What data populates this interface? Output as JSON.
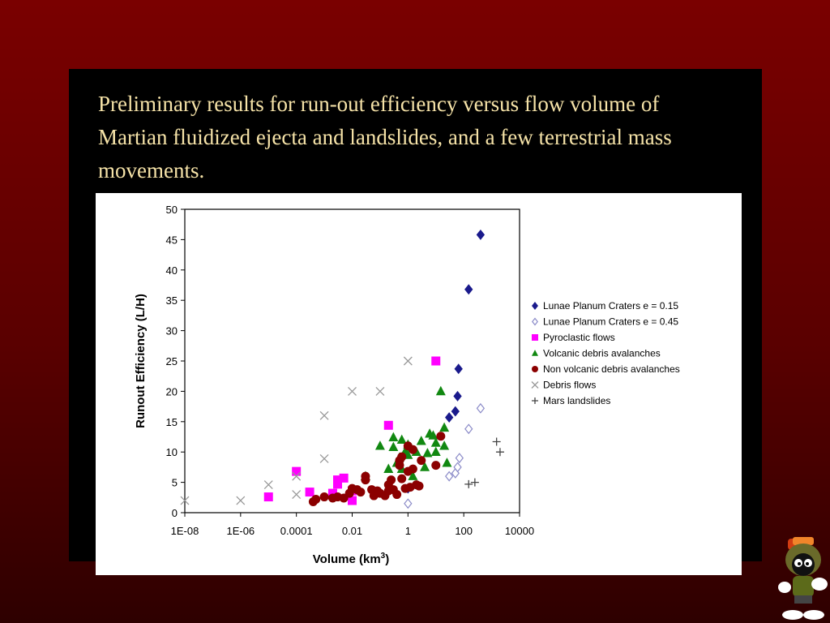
{
  "slide": {
    "title": "Preliminary results for run-out efficiency versus flow volume of Martian fluidized ejecta and landslides, and a few terrestrial mass movements."
  },
  "colors": {
    "background_top": "#7a0000",
    "background_bottom": "#2e0000",
    "panel": "#000000",
    "title_text": "#f6e3a8"
  },
  "mascot": {
    "icon": "marvin-martian-icon"
  },
  "chart_data": {
    "type": "scatter",
    "xlabel": "Volume (km",
    "xlabel_sup": "3",
    "xlabel_close": ")",
    "ylabel": "Runout Efficiency (L/H)",
    "xscale": "log",
    "xlim": [
      1e-08,
      10000
    ],
    "ylim": [
      0,
      50
    ],
    "xticks": [
      {
        "value": 1e-08,
        "label": "1E-08"
      },
      {
        "value": 1e-06,
        "label": "1E-06"
      },
      {
        "value": 0.0001,
        "label": "0.0001"
      },
      {
        "value": 0.01,
        "label": "0.01"
      },
      {
        "value": 1,
        "label": "1"
      },
      {
        "value": 100,
        "label": "100"
      },
      {
        "value": 10000,
        "label": "10000"
      }
    ],
    "yticks": [
      0,
      5,
      10,
      15,
      20,
      25,
      30,
      35,
      40,
      45,
      50
    ],
    "grid": false,
    "legend_position": "right",
    "series": [
      {
        "name": "Lunae Planum Craters e = 0.15",
        "marker": "diamond-filled",
        "color": "#1a1a8c",
        "points": [
          [
            1,
            4
          ],
          [
            30,
            15.7
          ],
          [
            50,
            16.7
          ],
          [
            60,
            19.2
          ],
          [
            65,
            23.7
          ],
          [
            150,
            36.8
          ],
          [
            400,
            45.8
          ]
        ]
      },
      {
        "name": "Lunae Planum Craters e = 0.45",
        "marker": "diamond-open",
        "color": "#8b8bc8",
        "points": [
          [
            1,
            1.5
          ],
          [
            30,
            6
          ],
          [
            50,
            6.5
          ],
          [
            60,
            7.5
          ],
          [
            70,
            9
          ],
          [
            150,
            13.8
          ],
          [
            400,
            17.2
          ]
        ]
      },
      {
        "name": "Pyroclastic flows",
        "marker": "square",
        "color": "#ff00ff",
        "points": [
          [
            1e-05,
            2.6
          ],
          [
            0.0001,
            6.8
          ],
          [
            0.0003,
            3.4
          ],
          [
            0.002,
            3.2
          ],
          [
            0.003,
            4.7
          ],
          [
            0.003,
            5.4
          ],
          [
            0.005,
            5.7
          ],
          [
            0.01,
            3.6
          ],
          [
            0.01,
            2
          ],
          [
            0.2,
            14.4
          ],
          [
            10,
            25
          ]
        ]
      },
      {
        "name": "Volcanic debris avalanches",
        "marker": "triangle",
        "color": "#118811",
        "points": [
          [
            0.03,
            6
          ],
          [
            0.1,
            11
          ],
          [
            0.2,
            7.2
          ],
          [
            0.3,
            12.4
          ],
          [
            0.3,
            10.8
          ],
          [
            0.4,
            8.2
          ],
          [
            0.5,
            9.1
          ],
          [
            0.6,
            7.2
          ],
          [
            0.6,
            12
          ],
          [
            0.8,
            10.1
          ],
          [
            1,
            9.5
          ],
          [
            1,
            11.2
          ],
          [
            1.5,
            6
          ],
          [
            2,
            10
          ],
          [
            3,
            11.8
          ],
          [
            4,
            7.5
          ],
          [
            5,
            9.8
          ],
          [
            6,
            13
          ],
          [
            8,
            12.7
          ],
          [
            10,
            10
          ],
          [
            10,
            11.5
          ],
          [
            15,
            20
          ],
          [
            20,
            11
          ],
          [
            20,
            14
          ],
          [
            25,
            8.2
          ]
        ]
      },
      {
        "name": "Non volcanic debris avalanches",
        "marker": "circle",
        "color": "#8b0000",
        "points": [
          [
            0.0004,
            1.8
          ],
          [
            0.0005,
            2.2
          ],
          [
            0.001,
            2.6
          ],
          [
            0.002,
            2.4
          ],
          [
            0.003,
            2.6
          ],
          [
            0.005,
            2.4
          ],
          [
            0.008,
            3.2
          ],
          [
            0.01,
            4
          ],
          [
            0.015,
            3.8
          ],
          [
            0.02,
            3.4
          ],
          [
            0.03,
            5.4
          ],
          [
            0.03,
            6
          ],
          [
            0.05,
            3.8
          ],
          [
            0.06,
            2.8
          ],
          [
            0.08,
            3.6
          ],
          [
            0.1,
            3.2
          ],
          [
            0.15,
            2.8
          ],
          [
            0.2,
            3.6
          ],
          [
            0.25,
            5.4
          ],
          [
            0.3,
            3.8
          ],
          [
            0.4,
            3
          ],
          [
            0.5,
            7.8
          ],
          [
            0.5,
            8.6
          ],
          [
            0.6,
            5.6
          ],
          [
            0.8,
            4
          ],
          [
            1,
            6.8
          ],
          [
            1,
            11
          ],
          [
            1.2,
            4.2
          ],
          [
            1.5,
            7.2
          ],
          [
            1.5,
            10.4
          ],
          [
            2,
            4.6
          ],
          [
            2.5,
            4.4
          ],
          [
            3,
            8.6
          ],
          [
            10,
            7.8
          ],
          [
            15,
            12.6
          ],
          [
            0.2,
            4.6
          ],
          [
            0.6,
            9.2
          ]
        ]
      },
      {
        "name": "Debris flows",
        "marker": "x",
        "color": "#999999",
        "points": [
          [
            1e-08,
            2
          ],
          [
            1e-06,
            2
          ],
          [
            1e-05,
            4.6
          ],
          [
            0.0001,
            3
          ],
          [
            0.0001,
            6
          ],
          [
            0.001,
            8.9
          ],
          [
            0.001,
            16
          ],
          [
            0.01,
            20
          ],
          [
            0.1,
            20
          ],
          [
            1,
            25
          ]
        ]
      },
      {
        "name": "Mars landslides",
        "marker": "plus",
        "color": "#444444",
        "points": [
          [
            150,
            4.7
          ],
          [
            250,
            5
          ],
          [
            1500,
            11.7
          ],
          [
            2000,
            10
          ]
        ]
      }
    ]
  }
}
